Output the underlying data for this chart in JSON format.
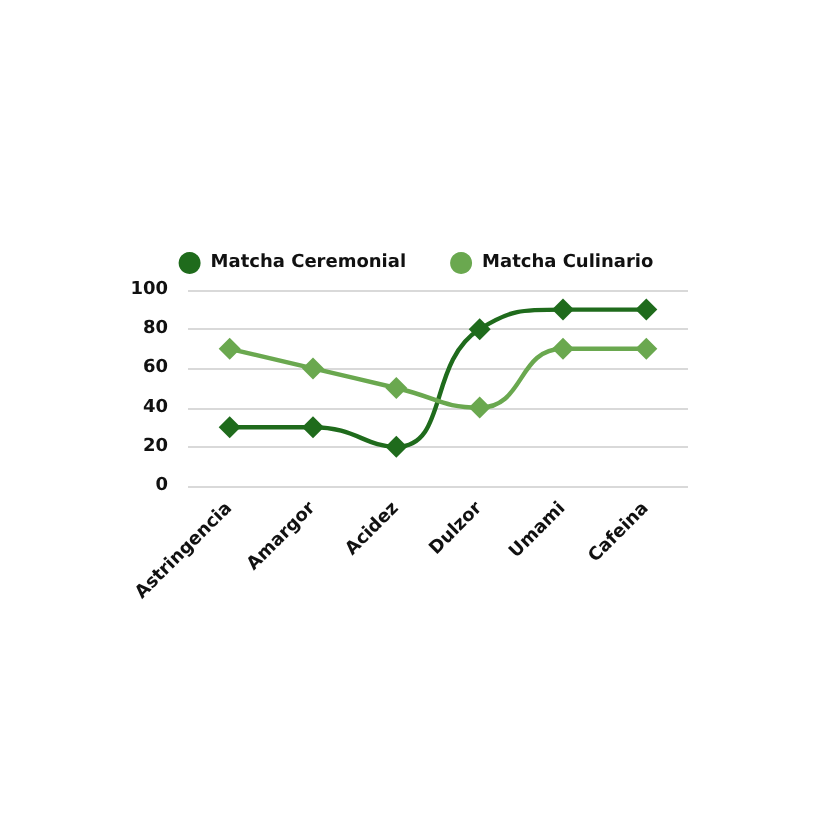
{
  "chart_data": {
    "type": "line",
    "categories": [
      "Astringencia",
      "Amargor",
      "Acidez",
      "Dulzor",
      "Umami",
      "Cafeina"
    ],
    "series": [
      {
        "name": "Matcha Ceremonial",
        "color": "#1f6b1c",
        "values": [
          30,
          30,
          20,
          80,
          90,
          90
        ]
      },
      {
        "name": "Matcha Culinario",
        "color": "#6aa84f",
        "values": [
          70,
          60,
          50,
          40,
          70,
          70
        ]
      }
    ],
    "ylim": [
      0,
      100
    ],
    "yticks": [
      0,
      20,
      40,
      60,
      80,
      100
    ],
    "grid": "y",
    "legend": "top",
    "marker": "diamond",
    "line_style": "solid"
  }
}
